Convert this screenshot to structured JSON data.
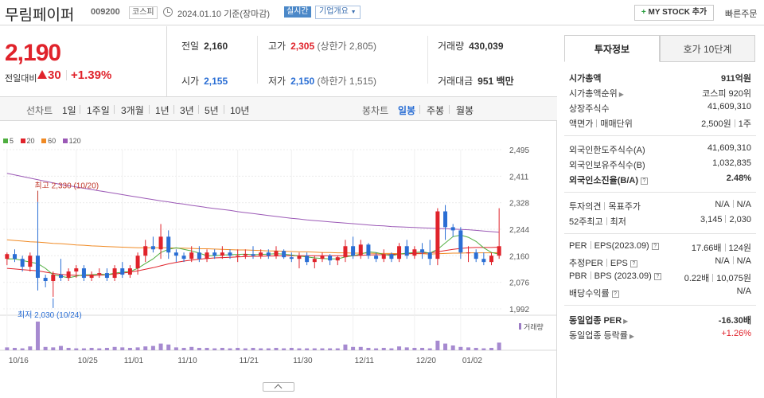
{
  "header": {
    "name": "무림페이퍼",
    "code": "009200",
    "market": "코스피",
    "date": "2024.01.10 기준(장마감)",
    "realtime": "실시간",
    "corp_info": "기업개요",
    "mystock": "MY STOCK 추가",
    "quick_order": "빠른주문"
  },
  "price": {
    "current": "2,190",
    "change_label": "전일대비",
    "change": "30",
    "change_pct": "+1.39%"
  },
  "quote": {
    "prev_label": "전일",
    "prev": "2,160",
    "high_label": "고가",
    "high": "2,305",
    "upper_limit": "(상한가 2,805)",
    "volume_label": "거래량",
    "volume": "430,039",
    "open_label": "시가",
    "open": "2,155",
    "low_label": "저가",
    "low": "2,150",
    "lower_limit": "(하한가 1,515)",
    "amount_label": "거래대금",
    "amount": "951",
    "amount_unit": "백만"
  },
  "periods": {
    "line_label": "선차트",
    "line_items": [
      "1일",
      "1주일",
      "3개월",
      "1년",
      "3년",
      "5년",
      "10년"
    ],
    "candle_label": "봉차트",
    "candle_items": [
      "일봉",
      "주봉",
      "월봉"
    ],
    "candle_selected": "일봉"
  },
  "chart_data": {
    "type": "candlestick",
    "ylim": [
      1992,
      2495
    ],
    "y_ticks": [
      "2,495",
      "2,411",
      "2,328",
      "2,244",
      "2,160",
      "2,076",
      "1,992"
    ],
    "x_ticks": [
      "10/16",
      "10/25",
      "11/01",
      "11/10",
      "11/21",
      "11/30",
      "12/11",
      "12/20",
      "01/02"
    ],
    "legend": [
      "5",
      "20",
      "60",
      "120"
    ],
    "legend_colors": [
      "#4fae3f",
      "#e0232b",
      "#f08a24",
      "#9b59b6"
    ],
    "max_label": "최고 2,330 (10/20)",
    "min_label": "최저 2,030 (10/24)",
    "volume_label": "거래량",
    "candles": [
      [
        2150,
        2170,
        2130,
        2165
      ],
      [
        2165,
        2180,
        2140,
        2150
      ],
      [
        2150,
        2160,
        2110,
        2125
      ],
      [
        2125,
        2170,
        2110,
        2160
      ],
      [
        2160,
        2330,
        2050,
        2090
      ],
      [
        2090,
        2100,
        2060,
        2080
      ],
      [
        2080,
        2110,
        2030,
        2100
      ],
      [
        2100,
        2150,
        2080,
        2090
      ],
      [
        2090,
        2120,
        2080,
        2110
      ],
      [
        2110,
        2130,
        2090,
        2120
      ],
      [
        2120,
        2130,
        2080,
        2090
      ],
      [
        2090,
        2110,
        2080,
        2100
      ],
      [
        2100,
        2120,
        2090,
        2105
      ],
      [
        2105,
        2120,
        2080,
        2090
      ],
      [
        2090,
        2130,
        2080,
        2120
      ],
      [
        2120,
        2140,
        2090,
        2100
      ],
      [
        2100,
        2130,
        2090,
        2120
      ],
      [
        2120,
        2170,
        2100,
        2160
      ],
      [
        2160,
        2210,
        2140,
        2190
      ],
      [
        2190,
        2220,
        2170,
        2180
      ],
      [
        2180,
        2260,
        2150,
        2220
      ],
      [
        2220,
        2240,
        2150,
        2170
      ],
      [
        2170,
        2180,
        2140,
        2160
      ],
      [
        2160,
        2170,
        2140,
        2150
      ],
      [
        2150,
        2190,
        2140,
        2170
      ],
      [
        2170,
        2190,
        2140,
        2150
      ],
      [
        2150,
        2180,
        2140,
        2170
      ],
      [
        2170,
        2180,
        2150,
        2160
      ],
      [
        2160,
        2190,
        2150,
        2170
      ],
      [
        2170,
        2180,
        2150,
        2160
      ],
      [
        2160,
        2180,
        2140,
        2160
      ],
      [
        2160,
        2180,
        2150,
        2165
      ],
      [
        2165,
        2190,
        2150,
        2160
      ],
      [
        2160,
        2180,
        2150,
        2170
      ],
      [
        2170,
        2180,
        2150,
        2160
      ],
      [
        2160,
        2190,
        2150,
        2175
      ],
      [
        2175,
        2180,
        2150,
        2155
      ],
      [
        2155,
        2170,
        2140,
        2150
      ],
      [
        2150,
        2170,
        2120,
        2160
      ],
      [
        2160,
        2170,
        2130,
        2140
      ],
      [
        2140,
        2160,
        2120,
        2150
      ],
      [
        2150,
        2170,
        2140,
        2160
      ],
      [
        2160,
        2165,
        2130,
        2145
      ],
      [
        2145,
        2160,
        2130,
        2155
      ],
      [
        2155,
        2210,
        2140,
        2190
      ],
      [
        2190,
        2220,
        2150,
        2160
      ],
      [
        2160,
        2210,
        2150,
        2195
      ],
      [
        2195,
        2200,
        2150,
        2160
      ],
      [
        2160,
        2170,
        2140,
        2150
      ],
      [
        2150,
        2180,
        2140,
        2165
      ],
      [
        2165,
        2170,
        2140,
        2150
      ],
      [
        2150,
        2200,
        2140,
        2190
      ],
      [
        2190,
        2210,
        2150,
        2160
      ],
      [
        2160,
        2190,
        2150,
        2180
      ],
      [
        2180,
        2200,
        2150,
        2170
      ],
      [
        2170,
        2210,
        2130,
        2150
      ],
      [
        2150,
        2310,
        2130,
        2300
      ],
      [
        2300,
        2320,
        2210,
        2250
      ],
      [
        2250,
        2260,
        2220,
        2240
      ],
      [
        2240,
        2250,
        2150,
        2170
      ],
      [
        2170,
        2190,
        2140,
        2170
      ],
      [
        2170,
        2180,
        2140,
        2150
      ],
      [
        2150,
        2170,
        2130,
        2140
      ],
      [
        2140,
        2170,
        2130,
        2160
      ],
      [
        2160,
        2310,
        2150,
        2190
      ]
    ],
    "ma5": [
      2150,
      2150,
      2145,
      2140,
      2135,
      2120,
      2100,
      2095,
      2090,
      2095,
      2100,
      2100,
      2102,
      2100,
      2105,
      2108,
      2110,
      2120,
      2135,
      2150,
      2170,
      2180,
      2185,
      2180,
      2175,
      2168,
      2160,
      2160,
      2162,
      2163,
      2164,
      2165,
      2163,
      2164,
      2165,
      2166,
      2165,
      2162,
      2159,
      2156,
      2153,
      2151,
      2150,
      2150,
      2156,
      2160,
      2165,
      2172,
      2170,
      2164,
      2160,
      2165,
      2168,
      2170,
      2172,
      2168,
      2180,
      2200,
      2220,
      2225,
      2218,
      2205,
      2185,
      2170,
      2165
    ],
    "ma20": [
      2120,
      2118,
      2116,
      2114,
      2112,
      2108,
      2104,
      2101,
      2099,
      2098,
      2097,
      2097,
      2098,
      2100,
      2102,
      2105,
      2108,
      2112,
      2117,
      2122,
      2128,
      2134,
      2139,
      2143,
      2146,
      2149,
      2151,
      2153,
      2154,
      2155,
      2156,
      2157,
      2158,
      2158,
      2159,
      2159,
      2160,
      2160,
      2160,
      2160,
      2160,
      2160,
      2160,
      2160,
      2160,
      2160,
      2161,
      2162,
      2163,
      2163,
      2164,
      2165,
      2166,
      2167,
      2168,
      2169,
      2172,
      2176,
      2180,
      2183,
      2185,
      2186,
      2186,
      2186,
      2187
    ],
    "ma60": [
      2210,
      2208,
      2206,
      2204,
      2203,
      2201,
      2199,
      2198,
      2196,
      2194,
      2193,
      2191,
      2190,
      2189,
      2188,
      2187,
      2186,
      2185,
      2185,
      2185,
      2185,
      2185,
      2184,
      2184,
      2183,
      2182,
      2182,
      2181,
      2180,
      2179,
      2178,
      2178,
      2177,
      2176,
      2175,
      2175,
      2174,
      2173,
      2172,
      2172,
      2171,
      2170,
      2170,
      2169,
      2169,
      2168,
      2168,
      2168,
      2167,
      2167,
      2167,
      2166,
      2166,
      2166,
      2166,
      2165,
      2166,
      2167,
      2168,
      2168,
      2169,
      2169,
      2169,
      2169,
      2170
    ],
    "ma120": [
      2420,
      2415,
      2410,
      2405,
      2400,
      2395,
      2390,
      2385,
      2381,
      2377,
      2373,
      2369,
      2365,
      2361,
      2357,
      2353,
      2349,
      2345,
      2341,
      2337,
      2333,
      2330,
      2326,
      2323,
      2319,
      2316,
      2312,
      2309,
      2306,
      2303,
      2299,
      2296,
      2293,
      2290,
      2287,
      2284,
      2281,
      2278,
      2276,
      2273,
      2271,
      2269,
      2267,
      2265,
      2263,
      2261,
      2259,
      2257,
      2255,
      2254,
      2252,
      2251,
      2250,
      2249,
      2248,
      2247,
      2246,
      2245,
      2244,
      2243,
      2242,
      2240,
      2238,
      2236,
      2234
    ],
    "volumes": [
      6,
      5,
      4,
      8,
      60,
      7,
      6,
      9,
      5,
      4,
      4,
      5,
      4,
      5,
      7,
      6,
      5,
      6,
      8,
      9,
      14,
      12,
      6,
      5,
      7,
      5,
      5,
      4,
      5,
      4,
      5,
      4,
      5,
      4,
      4,
      5,
      4,
      5,
      4,
      4,
      4,
      4,
      4,
      4,
      12,
      7,
      7,
      5,
      4,
      5,
      4,
      8,
      6,
      5,
      5,
      4,
      20,
      14,
      10,
      7,
      6,
      5,
      4,
      5,
      16
    ]
  },
  "panel": {
    "tab_invest": "투자정보",
    "tab_hoga": "호가 10단계",
    "mcap_label": "시가총액",
    "mcap": "911억원",
    "mcap_rank_label": "시가총액순위",
    "mcap_rank": "코스피 920위",
    "shares_label": "상장주식수",
    "shares": "41,609,310",
    "par_label": "액면가",
    "unit_label": "매매단위",
    "par": "2,500원",
    "unit": "1주",
    "foreign_limit_label": "외국인한도주식수(A)",
    "foreign_limit": "41,609,310",
    "foreign_hold_label": "외국인보유주식수(B)",
    "foreign_hold": "1,032,835",
    "foreign_ratio_label": "외국인소진율(B/A)",
    "foreign_ratio": "2.48%",
    "opinion_label": "투자의견",
    "target_label": "목표주가",
    "opinion": "N/A",
    "target": "N/A",
    "w52_label": "52주최고",
    "w52_low_label": "최저",
    "w52_high": "3,145",
    "w52_low": "2,030",
    "per_label": "PER",
    "eps_label": "EPS(2023.09)",
    "per": "17.66배",
    "eps": "124원",
    "eper_label": "추정PER",
    "eeps_label": "EPS",
    "eper": "N/A",
    "eeps": "N/A",
    "pbr_label": "PBR",
    "bps_label": "BPS (2023.09)",
    "pbr": "0.22배",
    "bps": "10,075원",
    "div_label": "배당수익률",
    "div": "N/A",
    "sector_per_label": "동일업종 PER",
    "sector_per": "-16.30배",
    "sector_rate_label": "동일업종 등락률",
    "sector_rate": "+1.26%"
  }
}
